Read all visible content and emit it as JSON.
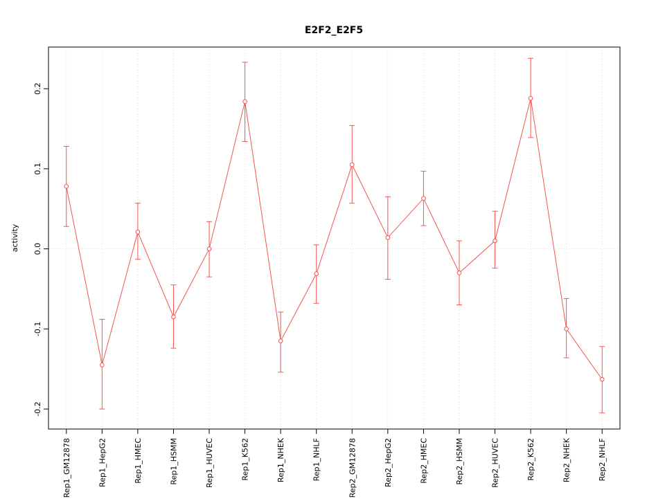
{
  "page": {
    "background": "#ffffff"
  },
  "chart_data": {
    "type": "line",
    "title": "E2F2_E2F5",
    "xlabel": "",
    "ylabel": "activity",
    "legend": "none",
    "grid": {
      "vertical_dotted": true,
      "zero_dotted_line": true
    },
    "marker": "open-circle",
    "error_bars": true,
    "categories": [
      "Rep1_GM12878",
      "Rep1_HepG2",
      "Rep1_HMEC",
      "Rep1_HSMM",
      "Rep1_HUVEC",
      "Rep1_K562",
      "Rep1_NHEK",
      "Rep1_NHLF",
      "Rep2_GM12878",
      "Rep2_HepG2",
      "Rep2_HMEC",
      "Rep2_HSMM",
      "Rep2_HUVEC",
      "Rep2_K562",
      "Rep2_NHEK",
      "Rep2_NHLF"
    ],
    "series": [
      {
        "name": "activity",
        "values": [
          0.078,
          -0.145,
          0.021,
          -0.085,
          0.0,
          0.184,
          -0.115,
          -0.031,
          0.105,
          0.014,
          0.063,
          -0.03,
          0.01,
          0.188,
          -0.1,
          -0.163
        ],
        "err_low": [
          0.028,
          -0.2,
          -0.013,
          -0.124,
          -0.035,
          0.134,
          -0.154,
          -0.068,
          0.057,
          -0.038,
          0.029,
          -0.07,
          -0.024,
          0.139,
          -0.136,
          -0.205
        ],
        "err_high": [
          0.128,
          -0.088,
          0.057,
          -0.045,
          0.034,
          0.233,
          -0.079,
          0.005,
          0.154,
          0.065,
          0.097,
          0.01,
          0.047,
          0.238,
          -0.062,
          -0.122
        ]
      }
    ],
    "ylim": [
      -0.225,
      0.252
    ],
    "yticks": [
      -0.2,
      -0.1,
      0.0,
      0.1,
      0.2
    ],
    "colors": {
      "series": "#f4534e",
      "grid": "#dcdcdc",
      "axis": "#000000",
      "marker_fill": "#ffffff"
    }
  }
}
